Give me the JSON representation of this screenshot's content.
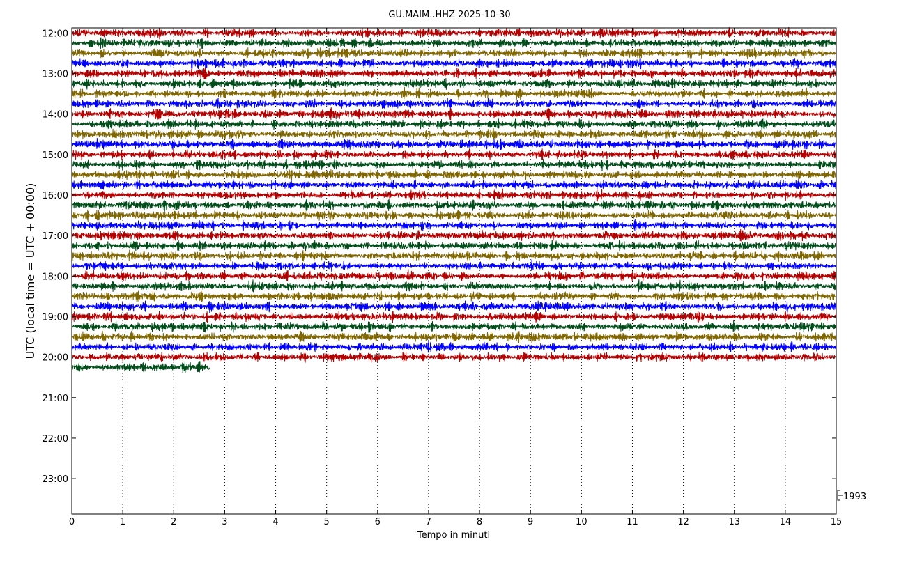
{
  "chart_data": {
    "type": "line",
    "title": "GU.MAIM..HHZ 2025-10-30",
    "xlabel": "Tempo in minuti",
    "ylabel": "UTC (local time = UTC + 00:00)",
    "xlim": [
      0,
      15
    ],
    "x_ticks": [
      0,
      1,
      2,
      3,
      4,
      5,
      6,
      7,
      8,
      9,
      10,
      11,
      12,
      13,
      14,
      15
    ],
    "y_range_hours": [
      12.0,
      24.0
    ],
    "y_ticks": [
      {
        "hour": 12,
        "label": "12:00"
      },
      {
        "hour": 13,
        "label": "13:00"
      },
      {
        "hour": 14,
        "label": "14:00"
      },
      {
        "hour": 15,
        "label": "15:00"
      },
      {
        "hour": 16,
        "label": "16:00"
      },
      {
        "hour": 17,
        "label": "17:00"
      },
      {
        "hour": 18,
        "label": "18:00"
      },
      {
        "hour": 19,
        "label": "19:00"
      },
      {
        "hour": 20,
        "label": "20:00"
      },
      {
        "hour": 21,
        "label": "21:00"
      },
      {
        "hour": 22,
        "label": "22:00"
      },
      {
        "hour": 23,
        "label": "23:00"
      }
    ],
    "trace_interval_minutes": 15,
    "trace_start_hour": 12.0,
    "trace_count": 34,
    "last_trace_length_minutes": 2.7,
    "trace_colors": [
      "#b30000",
      "#004d1a",
      "#806600",
      "#0000ff"
    ],
    "scale_label": "1993",
    "grid": {
      "x": "dotted",
      "y": false
    },
    "legend": "none"
  }
}
